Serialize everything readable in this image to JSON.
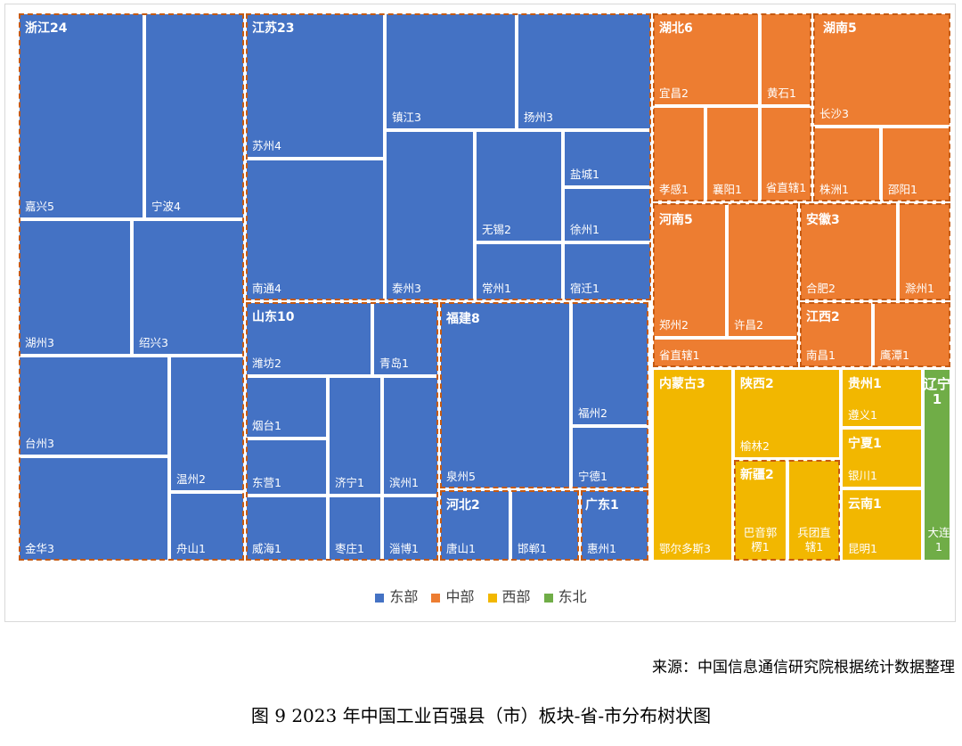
{
  "colors": {
    "东部": "#4472c4",
    "中部": "#ed7d31",
    "西部": "#f2b700",
    "东北": "#70ad47",
    "outline": "#c55a11"
  },
  "chart_data": {
    "type": "treemap",
    "legend": {
      "placement": "bottom",
      "entries": [
        "东部",
        "中部",
        "西部",
        "东北"
      ]
    },
    "provinces": [
      {
        "name": "浙江",
        "value": 24,
        "region": "东部",
        "label": "浙江24",
        "cities": [
          {
            "name": "嘉兴",
            "value": 5,
            "label": "嘉兴5"
          },
          {
            "name": "宁波",
            "value": 4,
            "label": "宁波4"
          },
          {
            "name": "湖州",
            "value": 3,
            "label": "湖州3"
          },
          {
            "name": "绍兴",
            "value": 3,
            "label": "绍兴3"
          },
          {
            "name": "台州",
            "value": 3,
            "label": "台州3"
          },
          {
            "name": "温州",
            "value": 2,
            "label": "温州2"
          },
          {
            "name": "金华",
            "value": 3,
            "label": "金华3"
          },
          {
            "name": "舟山",
            "value": 1,
            "label": "舟山1"
          }
        ]
      },
      {
        "name": "江苏",
        "value": 23,
        "region": "东部",
        "label": "江苏23",
        "cities": [
          {
            "name": "苏州",
            "value": 4,
            "label": "苏州4"
          },
          {
            "name": "镇江",
            "value": 3,
            "label": "镇江3"
          },
          {
            "name": "扬州",
            "value": 3,
            "label": "扬州3"
          },
          {
            "name": "南通",
            "value": 4,
            "label": "南通4"
          },
          {
            "name": "泰州",
            "value": 3,
            "label": "泰州3"
          },
          {
            "name": "无锡",
            "value": 2,
            "label": "无锡2"
          },
          {
            "name": "盐城",
            "value": 1,
            "label": "盐城1"
          },
          {
            "name": "徐州",
            "value": 1,
            "label": "徐州1"
          },
          {
            "name": "常州",
            "value": 1,
            "label": "常州1"
          },
          {
            "name": "宿迁",
            "value": 1,
            "label": "宿迁1"
          }
        ]
      },
      {
        "name": "山东",
        "value": 10,
        "region": "东部",
        "label": "山东10",
        "cities": [
          {
            "name": "潍坊",
            "value": 2,
            "label": "潍坊2"
          },
          {
            "name": "青岛",
            "value": 1,
            "label": "青岛1"
          },
          {
            "name": "烟台",
            "value": 1,
            "label": "烟台1"
          },
          {
            "name": "东营",
            "value": 1,
            "label": "东营1"
          },
          {
            "name": "济宁",
            "value": 1,
            "label": "济宁1"
          },
          {
            "name": "滨州",
            "value": 1,
            "label": "滨州1"
          },
          {
            "name": "威海",
            "value": 1,
            "label": "威海1"
          },
          {
            "name": "枣庄",
            "value": 1,
            "label": "枣庄1"
          },
          {
            "name": "淄博",
            "value": 1,
            "label": "淄博1"
          }
        ]
      },
      {
        "name": "福建",
        "value": 8,
        "region": "东部",
        "label": "福建8",
        "cities": [
          {
            "name": "泉州",
            "value": 5,
            "label": "泉州5"
          },
          {
            "name": "福州",
            "value": 2,
            "label": "福州2"
          },
          {
            "name": "宁德",
            "value": 1,
            "label": "宁德1"
          }
        ]
      },
      {
        "name": "河北",
        "value": 2,
        "region": "东部",
        "label": "河北2",
        "cities": [
          {
            "name": "唐山",
            "value": 1,
            "label": "唐山1"
          },
          {
            "name": "邯郸",
            "value": 1,
            "label": "邯郸1"
          }
        ]
      },
      {
        "name": "广东",
        "value": 1,
        "region": "东部",
        "label": "广东1",
        "cities": [
          {
            "name": "惠州",
            "value": 1,
            "label": "惠州1"
          }
        ]
      },
      {
        "name": "湖北",
        "value": 6,
        "region": "中部",
        "label": "湖北6",
        "cities": [
          {
            "name": "宜昌",
            "value": 2,
            "label": "宜昌2"
          },
          {
            "name": "黄石",
            "value": 1,
            "label": "黄石1"
          },
          {
            "name": "孝感",
            "value": 1,
            "label": "孝感1"
          },
          {
            "name": "襄阳",
            "value": 1,
            "label": "襄阳1"
          },
          {
            "name": "省直辖",
            "value": 1,
            "label": "省直辖1"
          }
        ]
      },
      {
        "name": "湖南",
        "value": 5,
        "region": "中部",
        "label": "湖南5",
        "cities": [
          {
            "name": "长沙",
            "value": 3,
            "label": "长沙3"
          },
          {
            "name": "株洲",
            "value": 1,
            "label": "株洲1"
          },
          {
            "name": "邵阳",
            "value": 1,
            "label": "邵阳1"
          }
        ]
      },
      {
        "name": "河南",
        "value": 5,
        "region": "中部",
        "label": "河南5",
        "cities": [
          {
            "name": "郑州",
            "value": 2,
            "label": "郑州2"
          },
          {
            "name": "许昌",
            "value": 2,
            "label": "许昌2"
          },
          {
            "name": "省直辖",
            "value": 1,
            "label": "省直辖1"
          }
        ]
      },
      {
        "name": "安徽",
        "value": 3,
        "region": "中部",
        "label": "安徽3",
        "cities": [
          {
            "name": "合肥",
            "value": 2,
            "label": "合肥2"
          },
          {
            "name": "滁州",
            "value": 1,
            "label": "滁州1"
          }
        ]
      },
      {
        "name": "江西",
        "value": 2,
        "region": "中部",
        "label": "江西2",
        "cities": [
          {
            "name": "南昌",
            "value": 1,
            "label": "南昌1"
          },
          {
            "name": "鹰潭",
            "value": 1,
            "label": "鹰潭1"
          }
        ]
      },
      {
        "name": "内蒙古",
        "value": 3,
        "region": "西部",
        "label": "内蒙古3",
        "cities": [
          {
            "name": "鄂尔多斯",
            "value": 3,
            "label": "鄂尔多斯3"
          }
        ]
      },
      {
        "name": "陕西",
        "value": 2,
        "region": "西部",
        "label": "陕西2",
        "cities": [
          {
            "name": "榆林",
            "value": 2,
            "label": "榆林2"
          }
        ]
      },
      {
        "name": "新疆",
        "value": 2,
        "region": "西部",
        "label": "新疆2",
        "cities": [
          {
            "name": "巴音郭楞",
            "value": 1,
            "label": "巴音郭楞1"
          },
          {
            "name": "兵团直辖",
            "value": 1,
            "label": "兵团直辖1"
          }
        ]
      },
      {
        "name": "贵州",
        "value": 1,
        "region": "西部",
        "label": "贵州1",
        "cities": [
          {
            "name": "遵义",
            "value": 1,
            "label": "遵义1"
          }
        ]
      },
      {
        "name": "宁夏",
        "value": 1,
        "region": "西部",
        "label": "宁夏1",
        "cities": [
          {
            "name": "银川",
            "value": 1,
            "label": "银川1"
          }
        ]
      },
      {
        "name": "云南",
        "value": 1,
        "region": "西部",
        "label": "云南1",
        "cities": [
          {
            "name": "昆明",
            "value": 1,
            "label": "昆明1"
          }
        ]
      },
      {
        "name": "辽宁",
        "value": 1,
        "region": "东北",
        "label": "辽宁1",
        "cities": [
          {
            "name": "大连",
            "value": 1,
            "label": "大连1"
          }
        ]
      }
    ]
  },
  "source": "来源：中国信息通信研究院根据统计数据整理",
  "caption": "图 9 2023 年中国工业百强县（市）板块-省-市分布树状图"
}
